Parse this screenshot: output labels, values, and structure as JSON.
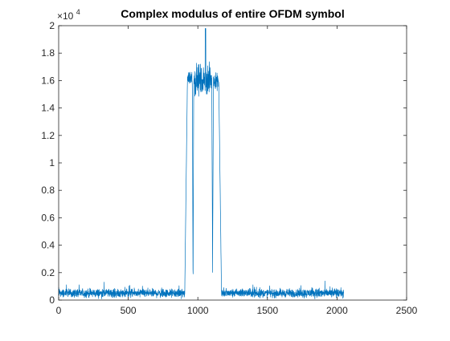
{
  "chart_data": {
    "type": "line",
    "title": "Complex modulus of entire OFDM symbol",
    "xlabel": "",
    "ylabel": "",
    "xlim": [
      0,
      2500
    ],
    "ylim": [
      0,
      20000
    ],
    "x_ticks": [
      0,
      500,
      1000,
      1500,
      2000,
      2500
    ],
    "x_tick_labels": [
      "0",
      "500",
      "1000",
      "1500",
      "2000",
      "2500"
    ],
    "y_ticks": [
      0,
      2000,
      4000,
      6000,
      8000,
      10000,
      12000,
      14000,
      16000,
      18000,
      20000
    ],
    "y_tick_labels": [
      "0",
      "0.2",
      "0.4",
      "0.6",
      "0.8",
      "1",
      "1.2",
      "1.4",
      "1.6",
      "1.8",
      "2"
    ],
    "y_exponent_base": "×10",
    "y_exponent_power": "4",
    "grid": false,
    "legend": "none",
    "series": [
      {
        "color": "#0072BD",
        "x_range": [
          1,
          2048
        ],
        "segments": [
          {
            "x_start": 1,
            "x_end": 905,
            "level": "noise",
            "mean": 500,
            "spread": 450
          },
          {
            "x_start": 906,
            "x_end": 925,
            "level": "rising-edge"
          },
          {
            "x_start": 926,
            "x_end": 960,
            "level": "burst",
            "mean": 16200,
            "spread": 1300
          },
          {
            "x_start": 961,
            "x_end": 970,
            "level": "dip",
            "min": 700
          },
          {
            "x_start": 971,
            "x_end": 1099,
            "level": "burst",
            "mean": 16000,
            "spread": 2600,
            "peak": 19800
          },
          {
            "x_start": 1100,
            "x_end": 1112,
            "level": "dip",
            "min": 2200
          },
          {
            "x_start": 1113,
            "x_end": 1150,
            "level": "burst",
            "mean": 16000,
            "spread": 1500
          },
          {
            "x_start": 1151,
            "x_end": 1170,
            "level": "falling-edge"
          },
          {
            "x_start": 1171,
            "x_end": 2048,
            "level": "noise",
            "mean": 500,
            "spread": 450
          }
        ]
      }
    ]
  }
}
